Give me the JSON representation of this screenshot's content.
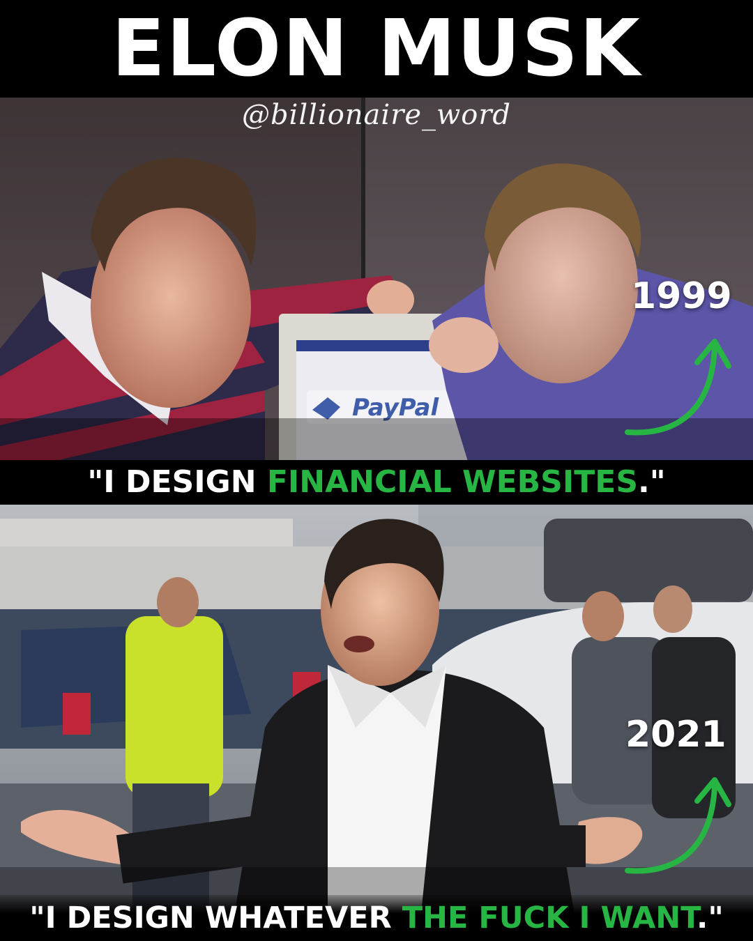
{
  "header": {
    "title": "ELON MUSK",
    "handle": "@billionaire_word"
  },
  "panel_1999": {
    "year": "1999",
    "screen_logo": "PayPal",
    "quote": {
      "open": "\"I DESIGN ",
      "highlight": "FINANCIAL WEBSITES",
      "close": ".\""
    }
  },
  "panel_2021": {
    "year": "2021",
    "quote": {
      "open": "\"I DESIGN WHATEVER ",
      "highlight": "THE FUCK I WANT",
      "close": ".\""
    }
  },
  "colors": {
    "background": "#000000",
    "text": "#ffffff",
    "accent_green": "#27b544"
  },
  "icons": [
    "curved-up-arrow-icon",
    "curved-up-arrow-icon"
  ]
}
